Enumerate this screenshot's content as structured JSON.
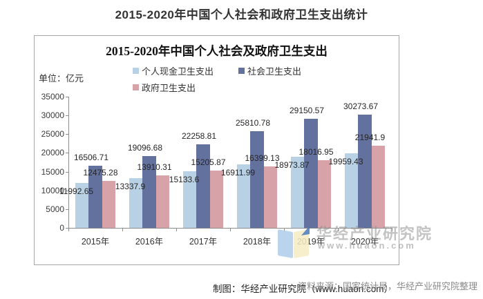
{
  "page_title": "2015-2020年中国个人社会和政府卫生支出统计",
  "chart": {
    "title": "2015-2020年中国个人社会及政府卫生支出",
    "unit_label": "单位：亿元",
    "caption": "制图：华经产业研究院（www.huaon.com）",
    "watermark": {
      "line1": "华经产业研究院",
      "line2": "www.huaon.com"
    }
  },
  "source_note": "资料来源：国家统计局，华经产业研究院整理",
  "colors": {
    "personal": "#b9d1e4",
    "social": "#63719f",
    "government": "#d8a3a8",
    "axis": "#8c8c8c",
    "border": "#a6a6a6"
  },
  "chart_data": {
    "type": "bar",
    "title": "2015-2020年中国个人社会及政府卫生支出",
    "unit": "亿元",
    "categories": [
      "2015年",
      "2016年",
      "2017年",
      "2018年",
      "2019年",
      "2020年"
    ],
    "series": [
      {
        "name": "个人现金卫生支出",
        "color": "#b9d1e4",
        "values": [
          11992.65,
          13337.9,
          15133.6,
          16911.99,
          18973.87,
          19959.43
        ]
      },
      {
        "name": "社会卫生支出",
        "color": "#63719f",
        "values": [
          16506.71,
          19096.68,
          22258.81,
          25810.78,
          29150.57,
          30273.67
        ]
      },
      {
        "name": "政府卫生支出",
        "color": "#d8a3a8",
        "values": [
          12475.28,
          13910.31,
          15205.87,
          16399.13,
          18016.95,
          21941.9
        ]
      }
    ],
    "ylim": [
      0,
      35000
    ],
    "ytick_step": 5000,
    "ytick_labels": [
      "0",
      "5000",
      "10000",
      "15000",
      "20000",
      "25000",
      "30000",
      "35000"
    ],
    "xlabel": "",
    "ylabel": "",
    "grid": false,
    "legend_position": "top"
  }
}
